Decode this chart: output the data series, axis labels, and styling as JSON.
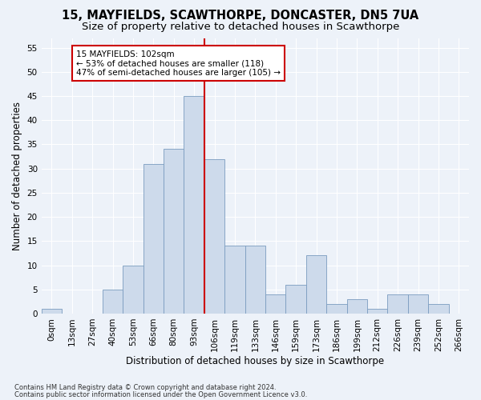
{
  "title1": "15, MAYFIELDS, SCAWTHORPE, DONCASTER, DN5 7UA",
  "title2": "Size of property relative to detached houses in Scawthorpe",
  "xlabel": "Distribution of detached houses by size in Scawthorpe",
  "ylabel": "Number of detached properties",
  "bar_labels": [
    "0sqm",
    "13sqm",
    "27sqm",
    "40sqm",
    "53sqm",
    "66sqm",
    "80sqm",
    "93sqm",
    "106sqm",
    "119sqm",
    "133sqm",
    "146sqm",
    "159sqm",
    "173sqm",
    "186sqm",
    "199sqm",
    "212sqm",
    "226sqm",
    "239sqm",
    "252sqm",
    "266sqm"
  ],
  "bar_values": [
    1,
    0,
    0,
    5,
    10,
    31,
    34,
    45,
    32,
    14,
    14,
    4,
    6,
    12,
    2,
    3,
    1,
    4,
    4,
    2,
    0
  ],
  "bar_color": "#cddaeb",
  "bar_edge_color": "#7a9cbf",
  "bar_width": 1.0,
  "ylim": [
    0,
    57
  ],
  "yticks": [
    0,
    5,
    10,
    15,
    20,
    25,
    30,
    35,
    40,
    45,
    50,
    55
  ],
  "vline_x": 7.5,
  "vline_color": "#cc0000",
  "annotation_text": "15 MAYFIELDS: 102sqm\n← 53% of detached houses are smaller (118)\n47% of semi-detached houses are larger (105) →",
  "annotation_box_facecolor": "#ffffff",
  "annotation_box_edgecolor": "#cc0000",
  "footer1": "Contains HM Land Registry data © Crown copyright and database right 2024.",
  "footer2": "Contains public sector information licensed under the Open Government Licence v3.0.",
  "bg_color": "#edf2f9",
  "grid_color": "#ffffff",
  "title1_fontsize": 10.5,
  "title2_fontsize": 9.5,
  "xlabel_fontsize": 8.5,
  "ylabel_fontsize": 8.5,
  "tick_fontsize": 7.5,
  "footer_fontsize": 6.0,
  "annot_fontsize": 7.5
}
